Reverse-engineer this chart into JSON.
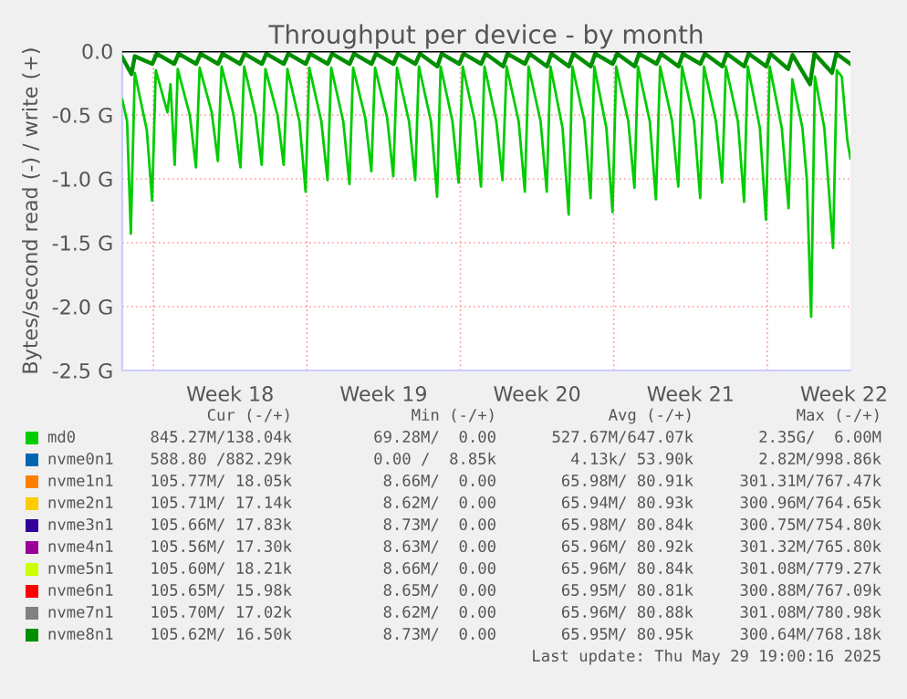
{
  "chart_data": {
    "type": "line",
    "title": "Throughput per device - by month",
    "ylabel": "Bytes/second read (-) / write (+)",
    "xlim": [
      "2025-04-26T13:55",
      "2025-05-29T19:00"
    ],
    "ylim": [
      -2.5,
      0.0
    ],
    "xticks": [
      {
        "value": "2025-04-28T00:00",
        "label": null
      },
      {
        "value": "2025-05-01T12:00",
        "label": "Week 18"
      },
      {
        "value": "2025-05-05T00:00",
        "label": null
      },
      {
        "value": "2025-05-08T12:00",
        "label": "Week 19"
      },
      {
        "value": "2025-05-12T00:00",
        "label": null
      },
      {
        "value": "2025-05-15T12:00",
        "label": "Week 20"
      },
      {
        "value": "2025-05-19T00:00",
        "label": null
      },
      {
        "value": "2025-05-22T12:00",
        "label": "Week 21"
      },
      {
        "value": "2025-05-26T00:00",
        "label": null
      },
      {
        "value": "2025-05-29T12:00",
        "label": "Week 22"
      }
    ],
    "yticks": [
      {
        "value": 0,
        "label": "0.0"
      },
      {
        "value": -0.5,
        "label": "-0.5 G"
      },
      {
        "value": -1.0,
        "label": "-1.0 G"
      },
      {
        "value": -1.5,
        "label": "-1.5 G"
      },
      {
        "value": -2.0,
        "label": "-2.0 G"
      },
      {
        "value": -2.5,
        "label": "-2.5 G"
      }
    ],
    "grid": true,
    "legend": "bottom",
    "ref_lines": [
      {
        "axis": "y",
        "value": 0,
        "color": "#000000"
      }
    ],
    "series": [
      {
        "name": "md0",
        "color": "#00cc00",
        "x": [
          "2025-04-26T13:55",
          "2025-04-26T19:12",
          "2025-04-26T23:17",
          "2025-04-27T03:36",
          "2025-04-27T16:48",
          "2025-04-27T22:34",
          "2025-04-28T02:38",
          "2025-04-28T15:22",
          "2025-04-28T18:43",
          "2025-04-28T23:17",
          "2025-04-29T02:38",
          "2025-04-29T15:50",
          "2025-04-29T22:34",
          "2025-04-30T02:38",
          "2025-04-30T15:50",
          "2025-04-30T22:34",
          "2025-05-01T02:38",
          "2025-05-01T15:50",
          "2025-05-01T23:17",
          "2025-05-02T03:22",
          "2025-05-02T15:50",
          "2025-05-02T22:34",
          "2025-05-03T02:38",
          "2025-05-03T15:50",
          "2025-05-03T22:34",
          "2025-05-04T02:38",
          "2025-05-04T15:50",
          "2025-05-04T22:34",
          "2025-05-05T02:38",
          "2025-05-05T15:50",
          "2025-05-05T22:34",
          "2025-05-06T02:38",
          "2025-05-06T15:50",
          "2025-05-06T22:34",
          "2025-05-07T02:38",
          "2025-05-07T15:50",
          "2025-05-07T22:34",
          "2025-05-08T02:38",
          "2025-05-08T15:50",
          "2025-05-08T22:34",
          "2025-05-09T02:38",
          "2025-05-09T15:50",
          "2025-05-09T22:34",
          "2025-05-10T02:38",
          "2025-05-10T15:50",
          "2025-05-10T22:34",
          "2025-05-11T02:24",
          "2025-05-11T15:22",
          "2025-05-11T22:05",
          "2025-05-12T02:38",
          "2025-05-12T15:50",
          "2025-05-12T22:34",
          "2025-05-13T02:24",
          "2025-05-13T15:22",
          "2025-05-13T22:05",
          "2025-05-14T02:38",
          "2025-05-14T15:50",
          "2025-05-14T22:34",
          "2025-05-15T02:38",
          "2025-05-15T15:50",
          "2025-05-15T22:34",
          "2025-05-16T02:38",
          "2025-05-16T15:50",
          "2025-05-16T22:34",
          "2025-05-17T02:38",
          "2025-05-17T15:50",
          "2025-05-17T22:34",
          "2025-05-18T02:38",
          "2025-05-18T15:50",
          "2025-05-18T22:34",
          "2025-05-19T02:38",
          "2025-05-19T15:50",
          "2025-05-19T22:34",
          "2025-05-20T02:24",
          "2025-05-20T15:22",
          "2025-05-20T22:05",
          "2025-05-21T02:38",
          "2025-05-21T15:50",
          "2025-05-21T22:34",
          "2025-05-22T02:38",
          "2025-05-22T15:50",
          "2025-05-22T22:34",
          "2025-05-23T02:38",
          "2025-05-23T15:50",
          "2025-05-23T22:34",
          "2025-05-24T02:38",
          "2025-05-24T15:50",
          "2025-05-24T22:34",
          "2025-05-25T02:38",
          "2025-05-25T15:50",
          "2025-05-25T22:34",
          "2025-05-26T02:38",
          "2025-05-26T15:50",
          "2025-05-26T23:17",
          "2025-05-27T03:22",
          "2025-05-27T14:24",
          "2025-05-27T19:12",
          "2025-05-28T00:00",
          "2025-05-28T04:05",
          "2025-05-28T14:24",
          "2025-05-29T00:00",
          "2025-05-29T04:05",
          "2025-05-29T09:36",
          "2025-05-29T15:36",
          "2025-05-29T19:00"
        ],
        "values": [
          -0.38,
          -0.55,
          -1.43,
          -0.17,
          -0.62,
          -1.17,
          -0.15,
          -0.48,
          -0.26,
          -0.89,
          -0.14,
          -0.5,
          -0.91,
          -0.13,
          -0.48,
          -0.86,
          -0.12,
          -0.5,
          -0.91,
          -0.12,
          -0.5,
          -0.89,
          -0.14,
          -0.5,
          -0.89,
          -0.14,
          -0.55,
          -1.1,
          -0.13,
          -0.55,
          -1.01,
          -0.13,
          -0.55,
          -1.04,
          -0.13,
          -0.52,
          -0.94,
          -0.13,
          -0.52,
          -0.98,
          -0.13,
          -0.55,
          -1.01,
          -0.12,
          -0.55,
          -1.14,
          -0.12,
          -0.55,
          -1.03,
          -0.12,
          -0.55,
          -1.06,
          -0.12,
          -0.55,
          -1.01,
          -0.12,
          -0.55,
          -1.1,
          -0.12,
          -0.55,
          -1.1,
          -0.12,
          -0.6,
          -1.28,
          -0.12,
          -0.55,
          -1.15,
          -0.12,
          -0.6,
          -1.26,
          -0.12,
          -0.55,
          -1.07,
          -0.12,
          -0.55,
          -1.16,
          -0.12,
          -0.55,
          -1.06,
          -0.12,
          -0.55,
          -1.15,
          -0.12,
          -0.55,
          -1.03,
          -0.12,
          -0.55,
          -1.18,
          -0.12,
          -0.6,
          -1.32,
          -0.12,
          -0.6,
          -1.23,
          -0.22,
          -0.6,
          -1.0,
          -2.08,
          -0.2,
          -0.6,
          -1.54,
          -0.15,
          -0.2,
          -0.7,
          -0.84
        ]
      },
      {
        "name": "nvme0n1",
        "color": "#0066b3"
      },
      {
        "name": "nvme1n1",
        "color": "#ff8000"
      },
      {
        "name": "nvme2n1",
        "color": "#ffcc00"
      },
      {
        "name": "nvme3n1",
        "color": "#330099"
      },
      {
        "name": "nvme4n1",
        "color": "#990099"
      },
      {
        "name": "nvme5n1",
        "color": "#ccff00"
      },
      {
        "name": "nvme6n1",
        "color": "#ff0000"
      },
      {
        "name": "nvme7n1",
        "color": "#808080"
      },
      {
        "name": "nvme8n1",
        "color": "#008f00",
        "x": [
          "2025-04-26T13:55",
          "2025-04-27T00:00",
          "2025-04-27T03:36",
          "2025-04-27T22:48",
          "2025-04-28T03:36",
          "2025-04-28T22:48",
          "2025-04-29T03:36",
          "2025-04-29T22:48",
          "2025-04-30T03:36",
          "2025-04-30T22:48",
          "2025-05-01T03:36",
          "2025-05-01T22:48",
          "2025-05-02T03:36",
          "2025-05-02T22:48",
          "2025-05-03T03:36",
          "2025-05-03T22:48",
          "2025-05-04T03:36",
          "2025-05-04T22:48",
          "2025-05-05T03:36",
          "2025-05-05T22:48",
          "2025-05-06T03:36",
          "2025-05-06T22:48",
          "2025-05-07T03:36",
          "2025-05-07T22:48",
          "2025-05-08T03:36",
          "2025-05-08T22:48",
          "2025-05-09T03:36",
          "2025-05-09T22:48",
          "2025-05-10T03:36",
          "2025-05-10T22:48",
          "2025-05-11T03:36",
          "2025-05-11T22:48",
          "2025-05-12T03:36",
          "2025-05-12T22:48",
          "2025-05-13T03:36",
          "2025-05-13T22:48",
          "2025-05-14T03:36",
          "2025-05-14T22:48",
          "2025-05-15T03:36",
          "2025-05-15T22:48",
          "2025-05-16T03:36",
          "2025-05-16T22:48",
          "2025-05-17T03:36",
          "2025-05-17T22:48",
          "2025-05-18T03:36",
          "2025-05-18T22:48",
          "2025-05-19T03:36",
          "2025-05-19T22:48",
          "2025-05-20T03:36",
          "2025-05-20T22:48",
          "2025-05-21T03:36",
          "2025-05-21T22:48",
          "2025-05-22T03:36",
          "2025-05-22T22:48",
          "2025-05-23T03:36",
          "2025-05-23T22:48",
          "2025-05-24T03:36",
          "2025-05-24T22:48",
          "2025-05-25T03:36",
          "2025-05-25T22:48",
          "2025-05-26T03:36",
          "2025-05-26T22:48",
          "2025-05-27T03:36",
          "2025-05-27T22:48",
          "2025-05-28T03:36",
          "2025-05-28T22:48",
          "2025-05-29T03:36",
          "2025-05-29T19:00"
        ],
        "values": [
          -0.05,
          -0.18,
          -0.04,
          -0.1,
          -0.02,
          -0.1,
          -0.02,
          -0.1,
          -0.02,
          -0.1,
          -0.02,
          -0.1,
          -0.02,
          -0.1,
          -0.02,
          -0.1,
          -0.02,
          -0.1,
          -0.02,
          -0.1,
          -0.02,
          -0.1,
          -0.02,
          -0.1,
          -0.02,
          -0.1,
          -0.02,
          -0.1,
          -0.02,
          -0.12,
          -0.02,
          -0.1,
          -0.02,
          -0.1,
          -0.02,
          -0.12,
          -0.02,
          -0.1,
          -0.02,
          -0.12,
          -0.02,
          -0.12,
          -0.02,
          -0.12,
          -0.02,
          -0.1,
          -0.02,
          -0.12,
          -0.02,
          -0.1,
          -0.02,
          -0.12,
          -0.02,
          -0.1,
          -0.02,
          -0.12,
          -0.02,
          -0.12,
          -0.02,
          -0.12,
          -0.02,
          -0.14,
          -0.03,
          -0.26,
          -0.02,
          -0.17,
          -0.02,
          -0.1
        ]
      }
    ],
    "annotations": [
      "Cur (-/+)",
      "Min (-/+)",
      "Avg (-/+)",
      "Max (-/+)",
      "845.27M/138.04k",
      "69.28M/  0.00",
      "527.67M/647.07k",
      "2.35G/  6.00M",
      "588.80 /882.29k",
      "0.00 /  8.85k",
      "4.13k/ 53.90k",
      "2.82M/998.86k",
      "105.77M/ 18.05k",
      "8.66M/  0.00",
      "65.98M/ 80.91k",
      "301.31M/767.47k",
      "105.71M/ 17.14k",
      "8.62M/  0.00",
      "65.94M/ 80.93k",
      "300.96M/764.65k",
      "105.66M/ 17.83k",
      "8.73M/  0.00",
      "65.98M/ 80.84k",
      "300.75M/754.80k",
      "105.56M/ 17.30k",
      "8.63M/  0.00",
      "65.96M/ 80.92k",
      "301.32M/765.80k",
      "105.60M/ 18.21k",
      "8.66M/  0.00",
      "65.96M/ 80.84k",
      "301.08M/779.27k",
      "105.65M/ 15.98k",
      "8.65M/  0.00",
      "65.95M/ 80.81k",
      "300.88M/767.09k",
      "105.70M/ 17.02k",
      "8.62M/  0.00",
      "65.96M/ 80.88k",
      "301.08M/780.98k",
      "105.62M/ 16.50k",
      "8.73M/  0.00",
      "65.95M/ 80.95k",
      "300.64M/768.18k",
      "Last update: Thu May 29 19:00:16 2025"
    ]
  }
}
